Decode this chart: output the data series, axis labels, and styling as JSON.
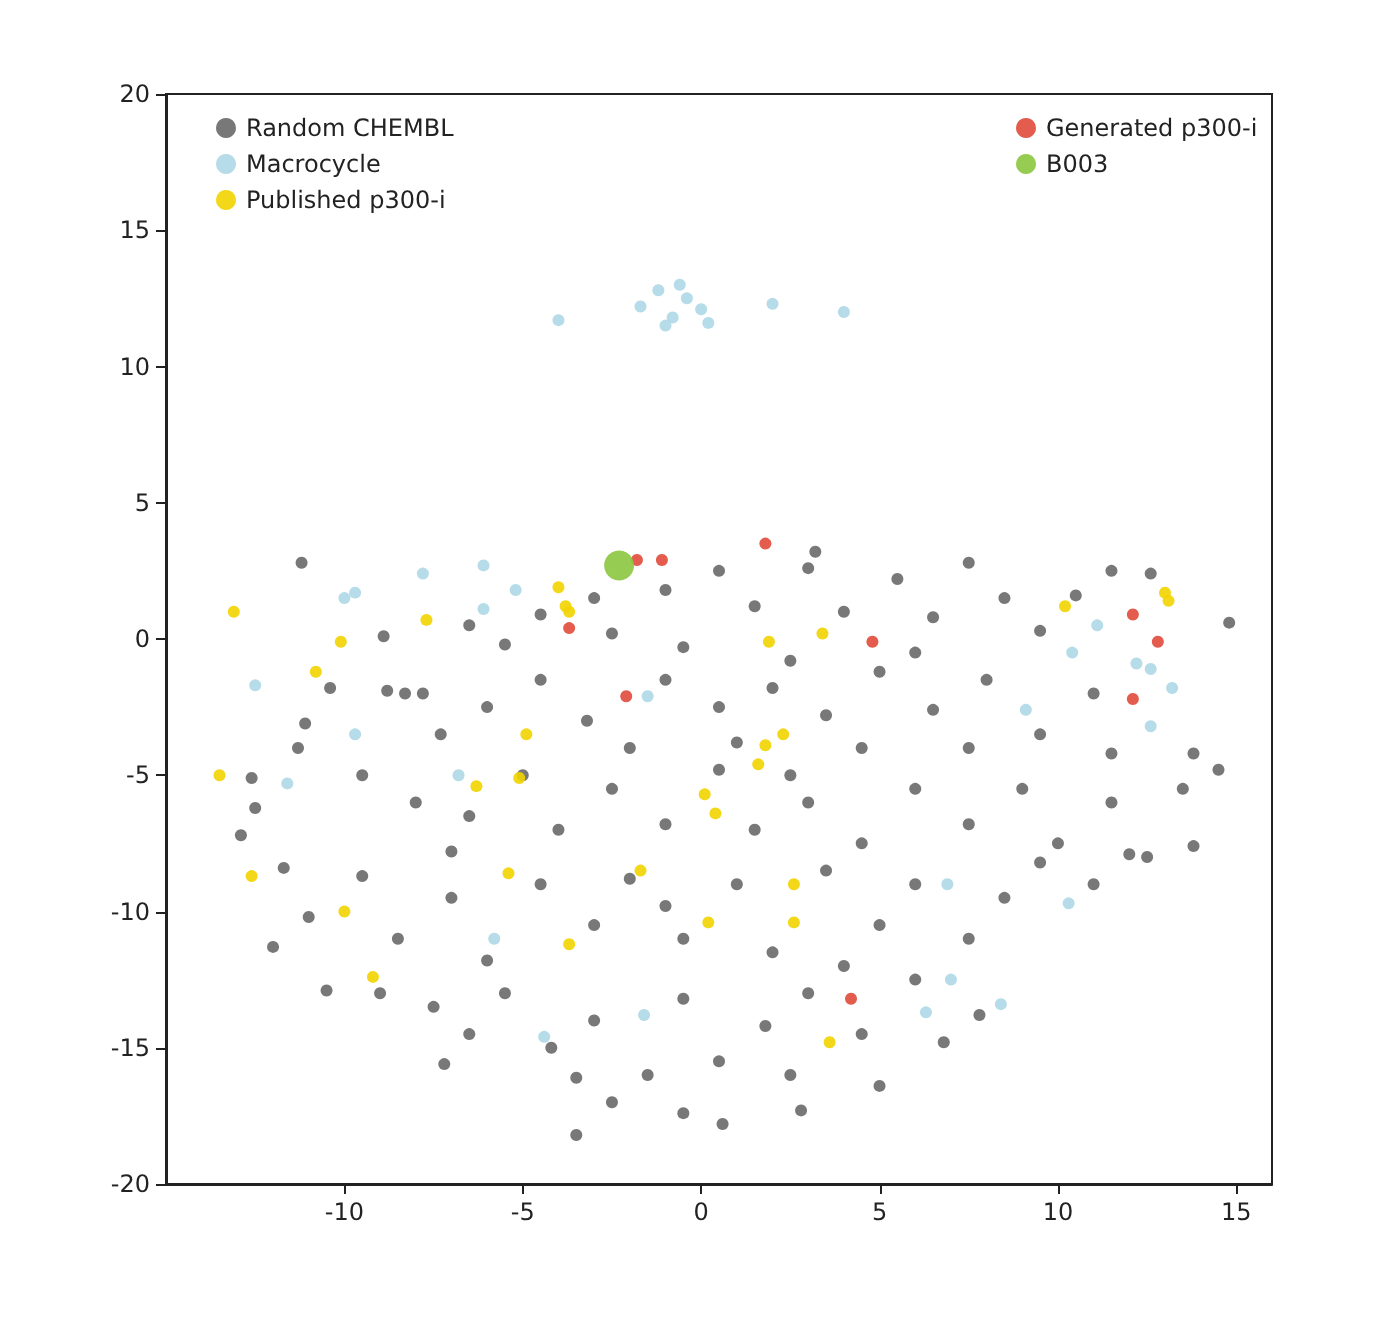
{
  "chart_data": {
    "type": "scatter",
    "xlim": [
      -15,
      16
    ],
    "xticks": [
      -10,
      -5,
      0,
      5,
      10,
      15
    ],
    "ylim": [
      -20,
      20
    ],
    "yticks": [
      -20,
      -15,
      -10,
      -5,
      0,
      5,
      10,
      15,
      20
    ],
    "grid": false,
    "legend": "top",
    "marker": "circle",
    "series": [
      {
        "name": "Random CHEMBL",
        "color": "#696969",
        "x": [
          -11.2,
          -8.9,
          -6.5,
          -5.5,
          -4.5,
          -3,
          -2.5,
          -1,
          0.5,
          1.5,
          3,
          4,
          5.5,
          6.5,
          7.5,
          8.5,
          9.5,
          10.5,
          11.5,
          12.6,
          14.8,
          3.2,
          -0.5,
          2.5,
          6,
          -10.4,
          -8.3,
          -8.8,
          -7.8,
          -7.3,
          -11.1,
          -6,
          -4.5,
          -3.2,
          -1,
          0.5,
          2,
          3.5,
          5,
          6.5,
          8,
          9.5,
          11,
          11.5,
          13.8,
          -2,
          4.5,
          7.5,
          1,
          -11.3,
          -12.6,
          -12.5,
          -9.5,
          -8,
          -6.5,
          -5,
          -4,
          -2.5,
          -1,
          0.5,
          1.5,
          3,
          4.5,
          6,
          7.5,
          9,
          10,
          11.5,
          12.5,
          13.5,
          14.5,
          -7,
          2.5,
          -12.9,
          -11.7,
          -11,
          -12,
          -9.5,
          -8.5,
          -7,
          -6,
          -4.5,
          -3,
          -2,
          -0.5,
          1,
          2,
          3.5,
          5,
          6,
          7.5,
          8.5,
          9.5,
          11,
          12,
          -1,
          4,
          13.8,
          -10.5,
          -9,
          -7.5,
          -6.5,
          -5.5,
          -4.2,
          -3,
          -1.5,
          -0.5,
          0.5,
          1.8,
          2.5,
          3,
          4.5,
          5,
          6,
          6.8,
          7.8,
          -2.5,
          -3.5,
          -0.5,
          -7.2,
          2.8,
          -3.5,
          0.6
        ],
        "values": [
          2.8,
          0.1,
          0.5,
          -0.2,
          0.9,
          1.5,
          0.2,
          1.8,
          2.5,
          1.2,
          2.6,
          1.0,
          2.2,
          0.8,
          2.8,
          1.5,
          0.3,
          1.6,
          2.5,
          2.4,
          0.6,
          3.2,
          -0.3,
          -0.8,
          -0.5,
          -1.8,
          -2.0,
          -1.9,
          -2.0,
          -3.5,
          -3.1,
          -2.5,
          -1.5,
          -3,
          -1.5,
          -2.5,
          -1.8,
          -2.8,
          -1.2,
          -2.6,
          -1.5,
          -3.5,
          -2,
          -4.2,
          -4.2,
          -4,
          -4,
          -4,
          -3.8,
          -4,
          -5.1,
          -6.2,
          -5,
          -6,
          -6.5,
          -5,
          -7,
          -5.5,
          -6.8,
          -4.8,
          -7,
          -6,
          -7.5,
          -5.5,
          -6.8,
          -5.5,
          -7.5,
          -6,
          -8,
          -5.5,
          -4.8,
          -7.8,
          -5,
          -7.2,
          -8.4,
          -10.2,
          -11.3,
          -8.7,
          -11,
          -9.5,
          -11.8,
          -9,
          -10.5,
          -8.8,
          -11,
          -9,
          -11.5,
          -8.5,
          -10.5,
          -9,
          -11,
          -9.5,
          -8.2,
          -9,
          -7.9,
          -9.8,
          -12,
          -7.6,
          -12.9,
          -13,
          -13.5,
          -14.5,
          -13,
          -15,
          -14,
          -16,
          -13.2,
          -15.5,
          -14.2,
          -16,
          -13,
          -14.5,
          -16.4,
          -12.5,
          -14.8,
          -13.8,
          -17,
          -16.1,
          -17.4,
          -15.6,
          -17.3,
          -18.2,
          -17.8
        ]
      },
      {
        "name": "Macrocycle",
        "color": "#add8e6",
        "x": [
          -1.7,
          -1.2,
          -0.8,
          -0.4,
          0,
          0.2,
          -1,
          -0.6,
          -4,
          2,
          4,
          -7.8,
          -6.1,
          -5.2,
          -6.1,
          -10,
          -9.7,
          -12.5,
          -9.7,
          -11.6,
          -1.5,
          -6.8,
          11.1,
          10.4,
          12.2,
          12.6,
          13.2,
          9.1,
          12.6,
          7.0,
          8.4,
          6.3,
          6.9,
          10.3,
          -4.4,
          -1.6,
          -5.8
        ],
        "values": [
          12.2,
          12.8,
          11.8,
          12.5,
          12.1,
          11.6,
          11.5,
          13,
          11.7,
          12.3,
          12,
          2.4,
          2.7,
          1.8,
          1.1,
          1.5,
          1.7,
          -1.7,
          -3.5,
          -5.3,
          -2.1,
          -5.0,
          0.5,
          -0.5,
          -0.9,
          -1.1,
          -1.8,
          -2.6,
          -3.2,
          -12.5,
          -13.4,
          -13.7,
          -9.0,
          -9.7,
          -14.6,
          -13.8,
          -11.0
        ]
      },
      {
        "name": "Published p300-i",
        "color": "#f2d400",
        "x": [
          -13.1,
          -7.7,
          -10.1,
          -10.8,
          -4.0,
          -3.8,
          -3.7,
          -4.9,
          -5.1,
          -6.3,
          -13.5,
          0.1,
          0.4,
          10.2,
          13.0,
          13.1,
          1.9,
          3.4,
          2.3,
          1.8,
          1.6,
          -12.6,
          -10.0,
          -9.2,
          -5.4,
          -3.7,
          -1.7,
          0.2,
          2.6,
          2.6,
          3.6
        ],
        "values": [
          1.0,
          0.7,
          -0.1,
          -1.2,
          1.9,
          1.2,
          1.0,
          -3.5,
          -5.1,
          -5.4,
          -5.0,
          -5.7,
          -6.4,
          1.2,
          1.7,
          1.4,
          -0.1,
          0.2,
          -3.5,
          -3.9,
          -4.6,
          -8.7,
          -10.0,
          -12.4,
          -8.6,
          -11.2,
          -8.5,
          -10.4,
          -9.0,
          -10.4,
          -14.8
        ]
      },
      {
        "name": "Generated p300-i",
        "color": "#e04a3a",
        "x": [
          -1.8,
          -1.1,
          -3.7,
          -2.1,
          1.8,
          4.8,
          12.1,
          12.8,
          12.1,
          4.2
        ],
        "values": [
          2.9,
          2.9,
          0.4,
          -2.1,
          3.5,
          -0.1,
          0.9,
          -0.1,
          -2.2,
          -13.2
        ]
      },
      {
        "name": "B003",
        "type": "bubble",
        "color": "#8cc63f",
        "x": [
          -2.3
        ],
        "values": [
          2.7
        ],
        "sizes": [
          1
        ]
      }
    ]
  }
}
